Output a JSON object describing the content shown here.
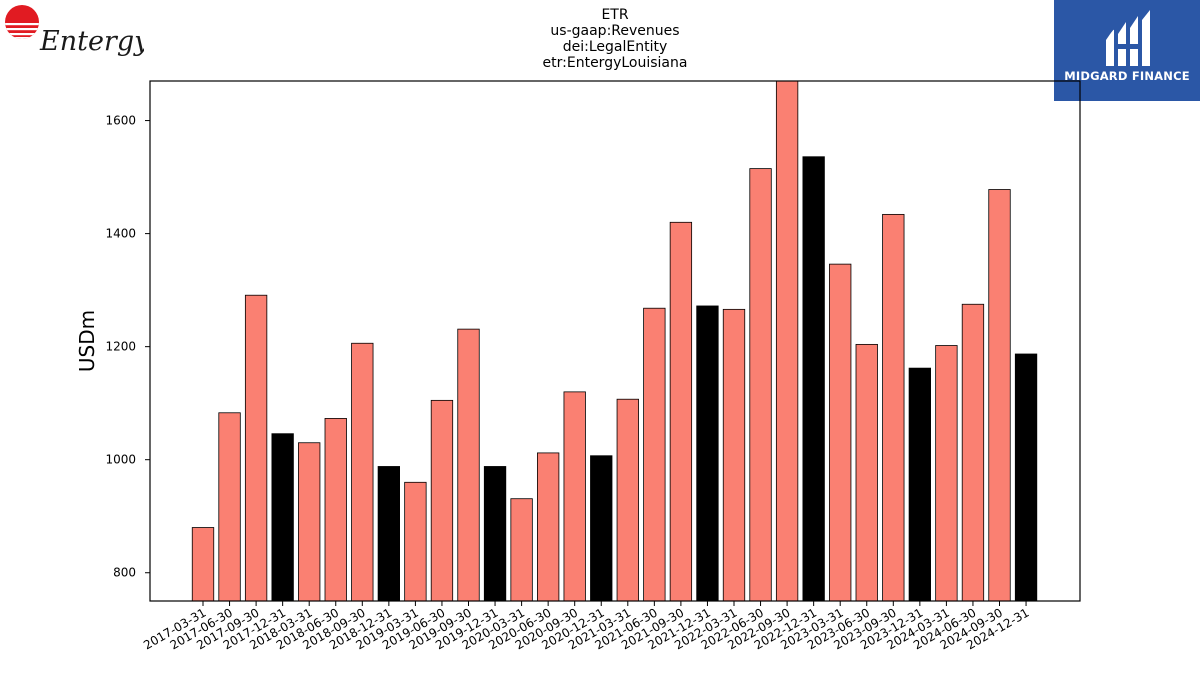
{
  "title_lines": [
    "ETR",
    "us-gaap:Revenues",
    "dei:LegalEntity",
    "etr:EntergyLouisiana"
  ],
  "logos": {
    "left": {
      "text": "Entergy",
      "color": "#e11b22"
    },
    "right": {
      "text": "MIDGARD FINANCE",
      "color": "#2b57a6"
    }
  },
  "colors": {
    "quarter": "#fa8072",
    "year_end": "#000000"
  },
  "chart_data": {
    "type": "bar",
    "ylabel": "USDm",
    "xlabel": "",
    "ylim": [
      750,
      1670
    ],
    "yticks": [
      800,
      1000,
      1200,
      1400,
      1600
    ],
    "grid": false,
    "categories": [
      "2017-03-31",
      "2017-06-30",
      "2017-09-30",
      "2017-12-31",
      "2018-03-31",
      "2018-06-30",
      "2018-09-30",
      "2018-12-31",
      "2019-03-31",
      "2019-06-30",
      "2019-09-30",
      "2019-12-31",
      "2020-03-31",
      "2020-06-30",
      "2020-09-30",
      "2020-12-31",
      "2021-03-31",
      "2021-06-30",
      "2021-09-30",
      "2021-12-31",
      "2022-03-31",
      "2022-06-30",
      "2022-09-30",
      "2022-12-31",
      "2023-03-31",
      "2023-06-30",
      "2023-09-30",
      "2023-12-31",
      "2024-03-31",
      "2024-06-30",
      "2024-09-30",
      "2024-12-31"
    ],
    "values": [
      880,
      1083,
      1291,
      1046,
      1030,
      1073,
      1206,
      988,
      960,
      1105,
      1231,
      988,
      931,
      1012,
      1120,
      1007,
      1107,
      1268,
      1420,
      1272,
      1266,
      1515,
      1670,
      1536,
      1346,
      1204,
      1434,
      1162,
      1202,
      1275,
      1478,
      1187
    ],
    "bar_kind": [
      "q",
      "q",
      "q",
      "y",
      "q",
      "q",
      "q",
      "y",
      "q",
      "q",
      "q",
      "y",
      "q",
      "q",
      "q",
      "y",
      "q",
      "q",
      "q",
      "y",
      "q",
      "q",
      "q",
      "y",
      "q",
      "q",
      "q",
      "y",
      "q",
      "q",
      "q",
      "y"
    ]
  }
}
